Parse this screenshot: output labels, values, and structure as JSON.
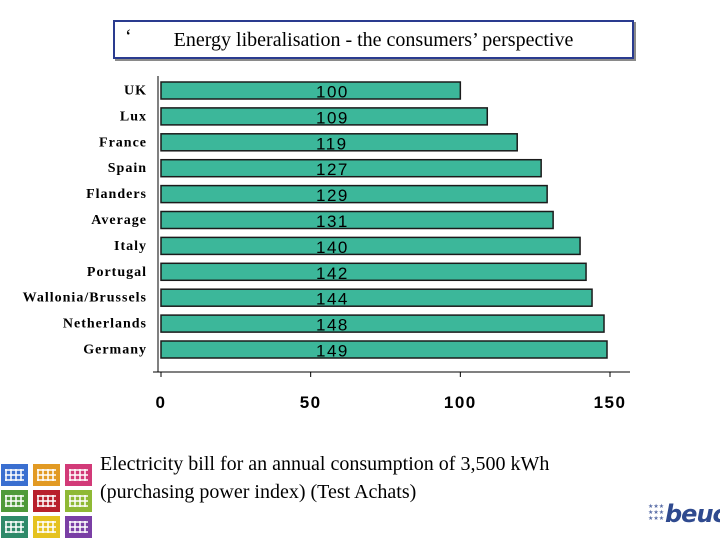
{
  "slide": {
    "title": "Energy liberalisation - the consumers’ perspective",
    "title_mark": "‘",
    "caption_line1": "Electricity bill for an annual consumption of 3,500 kWh",
    "caption_line2": "(purchasing power index) (Test Achats)",
    "logo_text": "beuc"
  },
  "chart_data": {
    "type": "bar",
    "orientation": "horizontal",
    "categories": [
      "UK",
      "Lux",
      "France",
      "Spain",
      "Flanders",
      "Average",
      "Italy",
      "Portugal",
      "Wallonia/Brussels",
      "Netherlands",
      "Germany"
    ],
    "values": [
      100,
      109,
      119,
      127,
      129,
      131,
      140,
      142,
      144,
      148,
      149
    ],
    "data_labels": [
      "100",
      "109",
      "119",
      "127",
      "129",
      "131",
      "140",
      "142",
      "144",
      "148",
      "149"
    ],
    "xlim": [
      0,
      150
    ],
    "xticks": [
      0,
      50,
      100,
      150
    ],
    "tick_labels": [
      "0",
      "50",
      "100",
      "150"
    ],
    "grid": false,
    "bar_color": "#3cb79a",
    "bar_edge_color": "#1b1b1b",
    "title": "",
    "xlabel": "",
    "ylabel": ""
  },
  "colors": {
    "title_border": "#2a3b8f",
    "logo_blue": "#2f4a8f"
  }
}
